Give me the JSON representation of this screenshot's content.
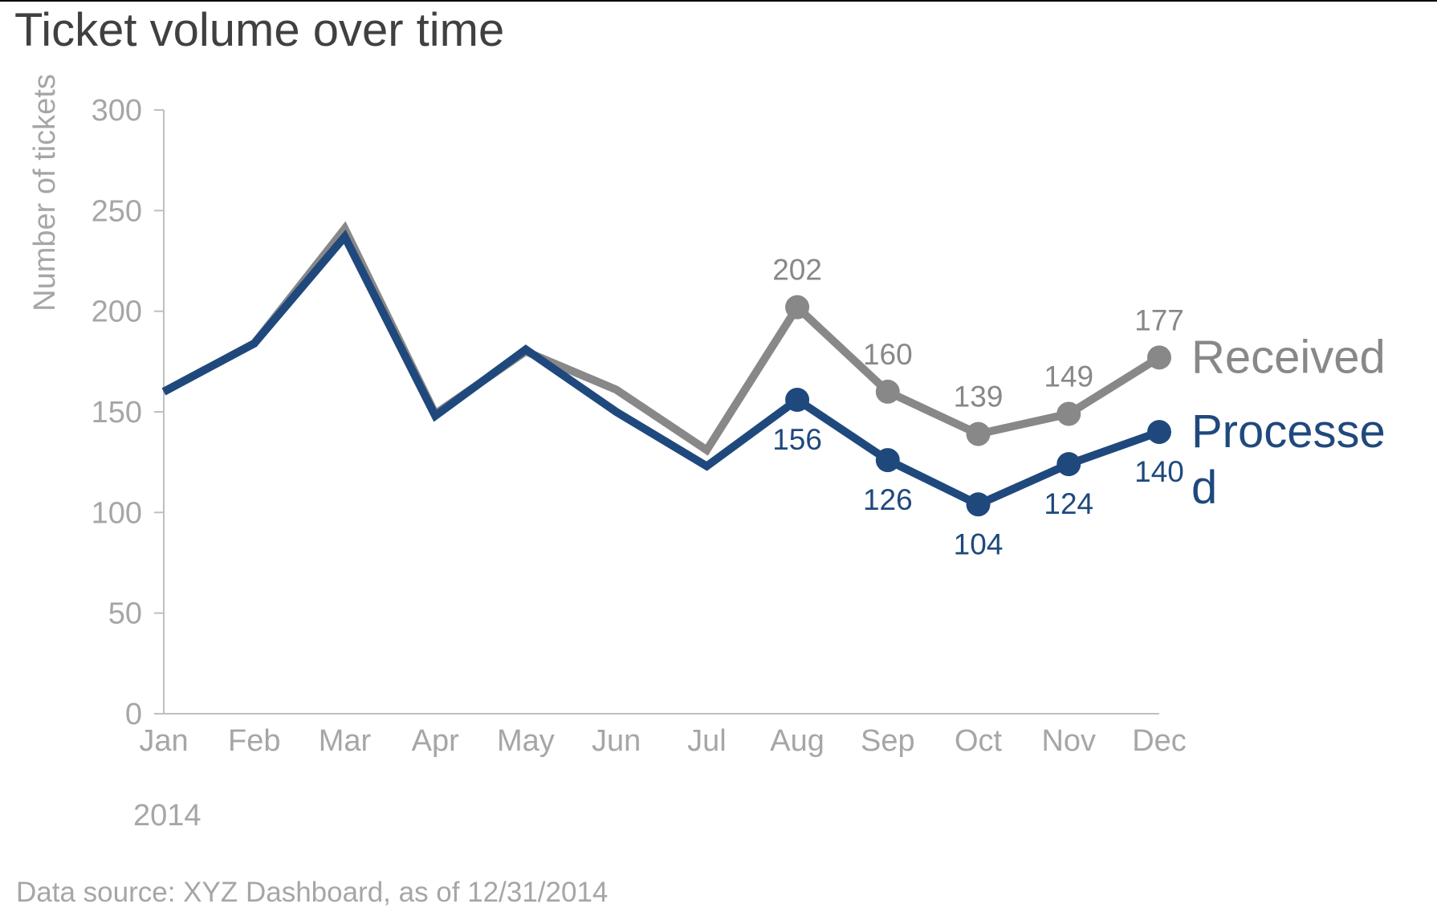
{
  "source_note": "Data source: XYZ Dashboard, as of 12/31/2014",
  "chart_data": {
    "type": "line",
    "title": "Ticket volume over time",
    "ylabel": "Number of tickets",
    "xlabel": "2014",
    "categories": [
      "Jan",
      "Feb",
      "Mar",
      "Apr",
      "May",
      "Jun",
      "Jul",
      "Aug",
      "Sep",
      "Oct",
      "Nov",
      "Dec"
    ],
    "ylim": [
      0,
      300
    ],
    "yticks": [
      0,
      50,
      100,
      150,
      200,
      250,
      300
    ],
    "grid": false,
    "legend": "direct-labels-right",
    "series": [
      {
        "name": "Received",
        "label_lines": [
          "Received"
        ],
        "color": "#888888",
        "values": [
          160,
          184,
          241,
          149,
          180,
          161,
          131,
          202,
          160,
          139,
          149,
          177
        ],
        "labeled_from_index": 7,
        "label_position": "above"
      },
      {
        "name": "Processed",
        "label_lines": [
          "Processe",
          "d"
        ],
        "color": "#1f497d",
        "values": [
          160,
          184,
          237,
          148,
          181,
          150,
          123,
          156,
          126,
          104,
          124,
          140
        ],
        "labeled_from_index": 7,
        "label_position": "below"
      }
    ]
  }
}
